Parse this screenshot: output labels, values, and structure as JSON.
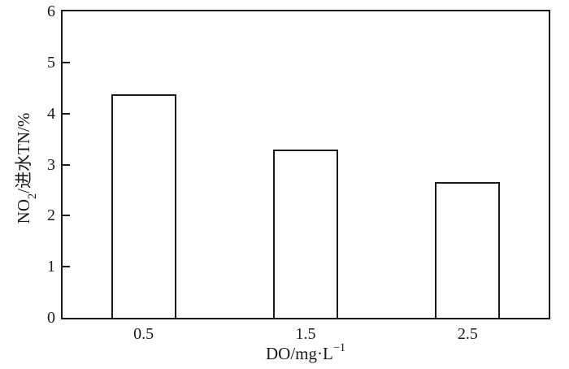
{
  "chart_data": {
    "type": "bar",
    "title": "",
    "categories": [
      "0.5",
      "1.5",
      "2.5"
    ],
    "values": [
      4.37,
      3.29,
      2.66
    ],
    "series": [
      {
        "name": "NO2/进水TN",
        "values": [
          4.37,
          3.29,
          2.66
        ]
      }
    ],
    "xlabel": {
      "text": "DO/mg·L⁻¹",
      "base": "DO/mg·L",
      "superscript": "−1"
    },
    "ylabel": {
      "text": "NO₂/进水TN/%",
      "prefix": "NO",
      "subscript": "2",
      "suffix": "/进水TN/%"
    },
    "ylim": [
      0,
      6
    ],
    "ytick_labels": [
      "0",
      "1",
      "2",
      "3",
      "4",
      "5",
      "6"
    ],
    "ytick_values": [
      0,
      1,
      2,
      3,
      4,
      5,
      6
    ],
    "inner_tick_values": [
      1,
      2,
      3,
      4,
      5
    ],
    "grid": false,
    "legend": false,
    "colors": {
      "bar_fill": "#ffffff",
      "line_color": "#1a1a1a",
      "background": "#ffffff"
    }
  }
}
